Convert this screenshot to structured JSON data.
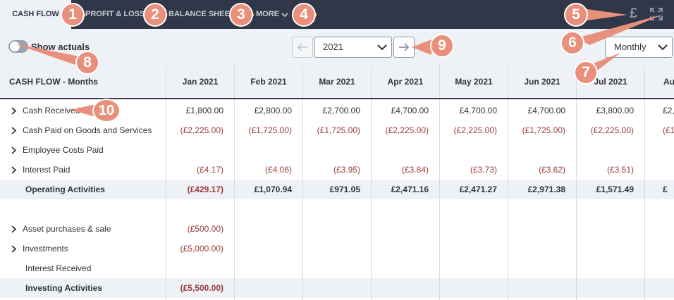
{
  "tabs": [
    {
      "label": "CASH FLOW",
      "active": true
    },
    {
      "label": "PROFIT & LOSS",
      "active": false
    },
    {
      "label": "BALANCE SHEET",
      "active": false
    },
    {
      "label": "MORE",
      "active": false
    }
  ],
  "toolbar": {
    "currency_symbol": "£",
    "expand_icon": "expand-icon"
  },
  "controls": {
    "toggle_label": "Show actuals",
    "toggle_on": false,
    "year": "2021",
    "period": "Monthly"
  },
  "table": {
    "header_label": "CASH FLOW - Months",
    "columns": [
      "Jan 2021",
      "Feb 2021",
      "Mar 2021",
      "Apr 2021",
      "May 2021",
      "Jun 2021",
      "Jul 2021",
      "Au"
    ],
    "rows": [
      {
        "label": "Cash Received",
        "expandable": true,
        "bold": false,
        "shaded": false,
        "values": [
          "£1,800.00",
          "£2,800.00",
          "£2,700.00",
          "£4,700.00",
          "£4,700.00",
          "£4,700.00",
          "£3,800.00",
          "£2,"
        ]
      },
      {
        "label": "Cash Paid on Goods and Services",
        "expandable": true,
        "bold": false,
        "shaded": false,
        "values": [
          "(£2,225.00)",
          "(£1,725.00)",
          "(£1,725.00)",
          "(£2,225.00)",
          "(£2,225.00)",
          "(£1,725.00)",
          "(£2,225.00)",
          "(£1,"
        ]
      },
      {
        "label": "Employee Costs Paid",
        "expandable": true,
        "bold": false,
        "shaded": false,
        "values": [
          "",
          "",
          "",
          "",
          "",
          "",
          "",
          ""
        ]
      },
      {
        "label": "Interest Paid",
        "expandable": true,
        "bold": false,
        "shaded": false,
        "values": [
          "(£4.17)",
          "(£4.06)",
          "(£3.95)",
          "(£3.84)",
          "(£3.73)",
          "(£3.62)",
          "(£3.51)",
          ""
        ]
      },
      {
        "label": "Operating Activities",
        "expandable": false,
        "bold": true,
        "shaded": true,
        "values": [
          "(£429.17)",
          "£1,070.94",
          "£971.05",
          "£2,471.16",
          "£2,471.27",
          "£2,971.38",
          "£1,571.49",
          "£"
        ]
      },
      {
        "label": "",
        "expandable": false,
        "bold": false,
        "shaded": false,
        "values": [
          "",
          "",
          "",
          "",
          "",
          "",
          "",
          ""
        ]
      },
      {
        "label": "Asset purchases & sale",
        "expandable": true,
        "bold": false,
        "shaded": false,
        "values": [
          "(£500.00)",
          "",
          "",
          "",
          "",
          "",
          "",
          ""
        ]
      },
      {
        "label": "Investments",
        "expandable": true,
        "bold": false,
        "shaded": false,
        "values": [
          "(£5,000.00)",
          "",
          "",
          "",
          "",
          "",
          "",
          ""
        ]
      },
      {
        "label": "Interest Received",
        "expandable": false,
        "bold": false,
        "shaded": false,
        "values": [
          "",
          "",
          "",
          "",
          "",
          "",
          "",
          ""
        ]
      },
      {
        "label": "Investing Activities",
        "expandable": false,
        "bold": true,
        "shaded": true,
        "values": [
          "(£5,500.00)",
          "",
          "",
          "",
          "",
          "",
          "",
          ""
        ]
      }
    ]
  },
  "annotations": [
    "1",
    "2",
    "3",
    "4",
    "5",
    "6",
    "7",
    "8",
    "9",
    "10"
  ],
  "colors": {
    "topbar": "#2f3748",
    "header_bg": "#eef1f5",
    "negative": "#9a3b3b",
    "callout": "#e8907c"
  }
}
